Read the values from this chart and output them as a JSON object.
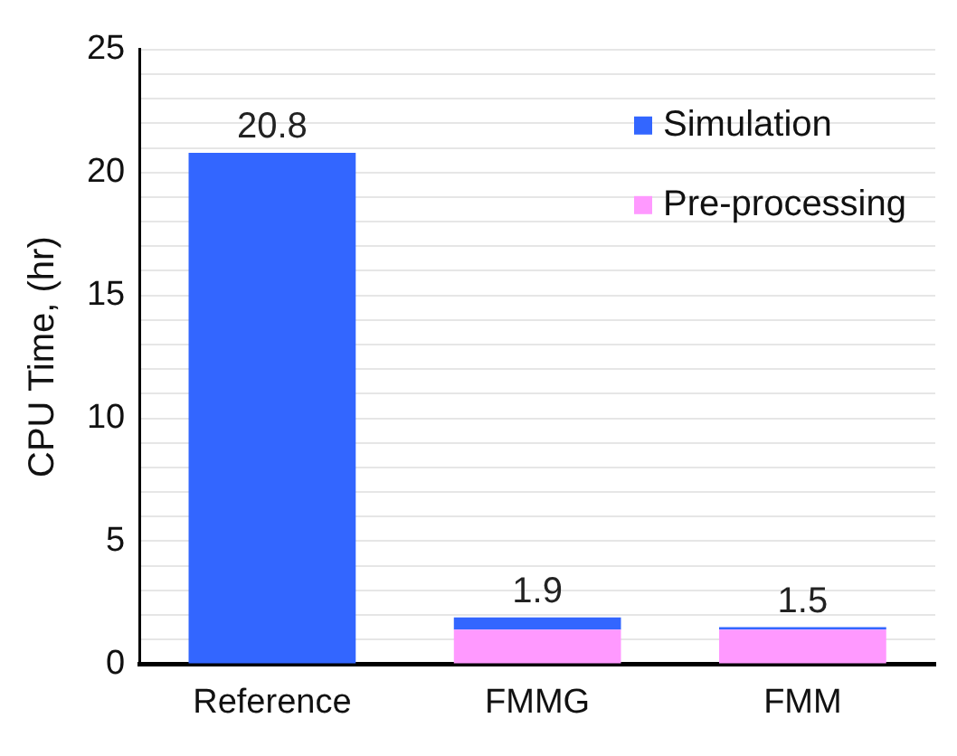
{
  "chart_data": {
    "type": "bar",
    "ylabel": "CPU Time, (hr)",
    "categories": [
      "Reference",
      "FMMG",
      "FMM"
    ],
    "stacked": true,
    "series": [
      {
        "name": "Pre-processing",
        "color": "#ff99ff",
        "values": [
          0,
          1.4,
          1.4
        ]
      },
      {
        "name": "Simulation",
        "color": "#3366ff",
        "values": [
          20.8,
          0.5,
          0.1
        ]
      }
    ],
    "totals": [
      "20.8",
      "1.9",
      "1.5"
    ],
    "ylim": [
      0,
      25
    ],
    "yticks": [
      0,
      {
        "value": 1,
        "label": null
      },
      {
        "value": 2,
        "label": null
      },
      {
        "value": 3,
        "label": null
      },
      {
        "value": 4,
        "label": null
      },
      5,
      {
        "value": 6,
        "label": null
      },
      {
        "value": 7,
        "label": null
      },
      {
        "value": 8,
        "label": null
      },
      {
        "value": 9,
        "label": null
      },
      10,
      {
        "value": 11,
        "label": null
      },
      {
        "value": 12,
        "label": null
      },
      {
        "value": 13,
        "label": null
      },
      {
        "value": 14,
        "label": null
      },
      15,
      {
        "value": 16,
        "label": null
      },
      {
        "value": 17,
        "label": null
      },
      {
        "value": 18,
        "label": null
      },
      {
        "value": 19,
        "label": null
      },
      20,
      {
        "value": 21,
        "label": null
      },
      {
        "value": 22,
        "label": null
      },
      {
        "value": 23,
        "label": null
      },
      {
        "value": 24,
        "label": null
      },
      25
    ],
    "grid": "y",
    "legend": "top right"
  }
}
